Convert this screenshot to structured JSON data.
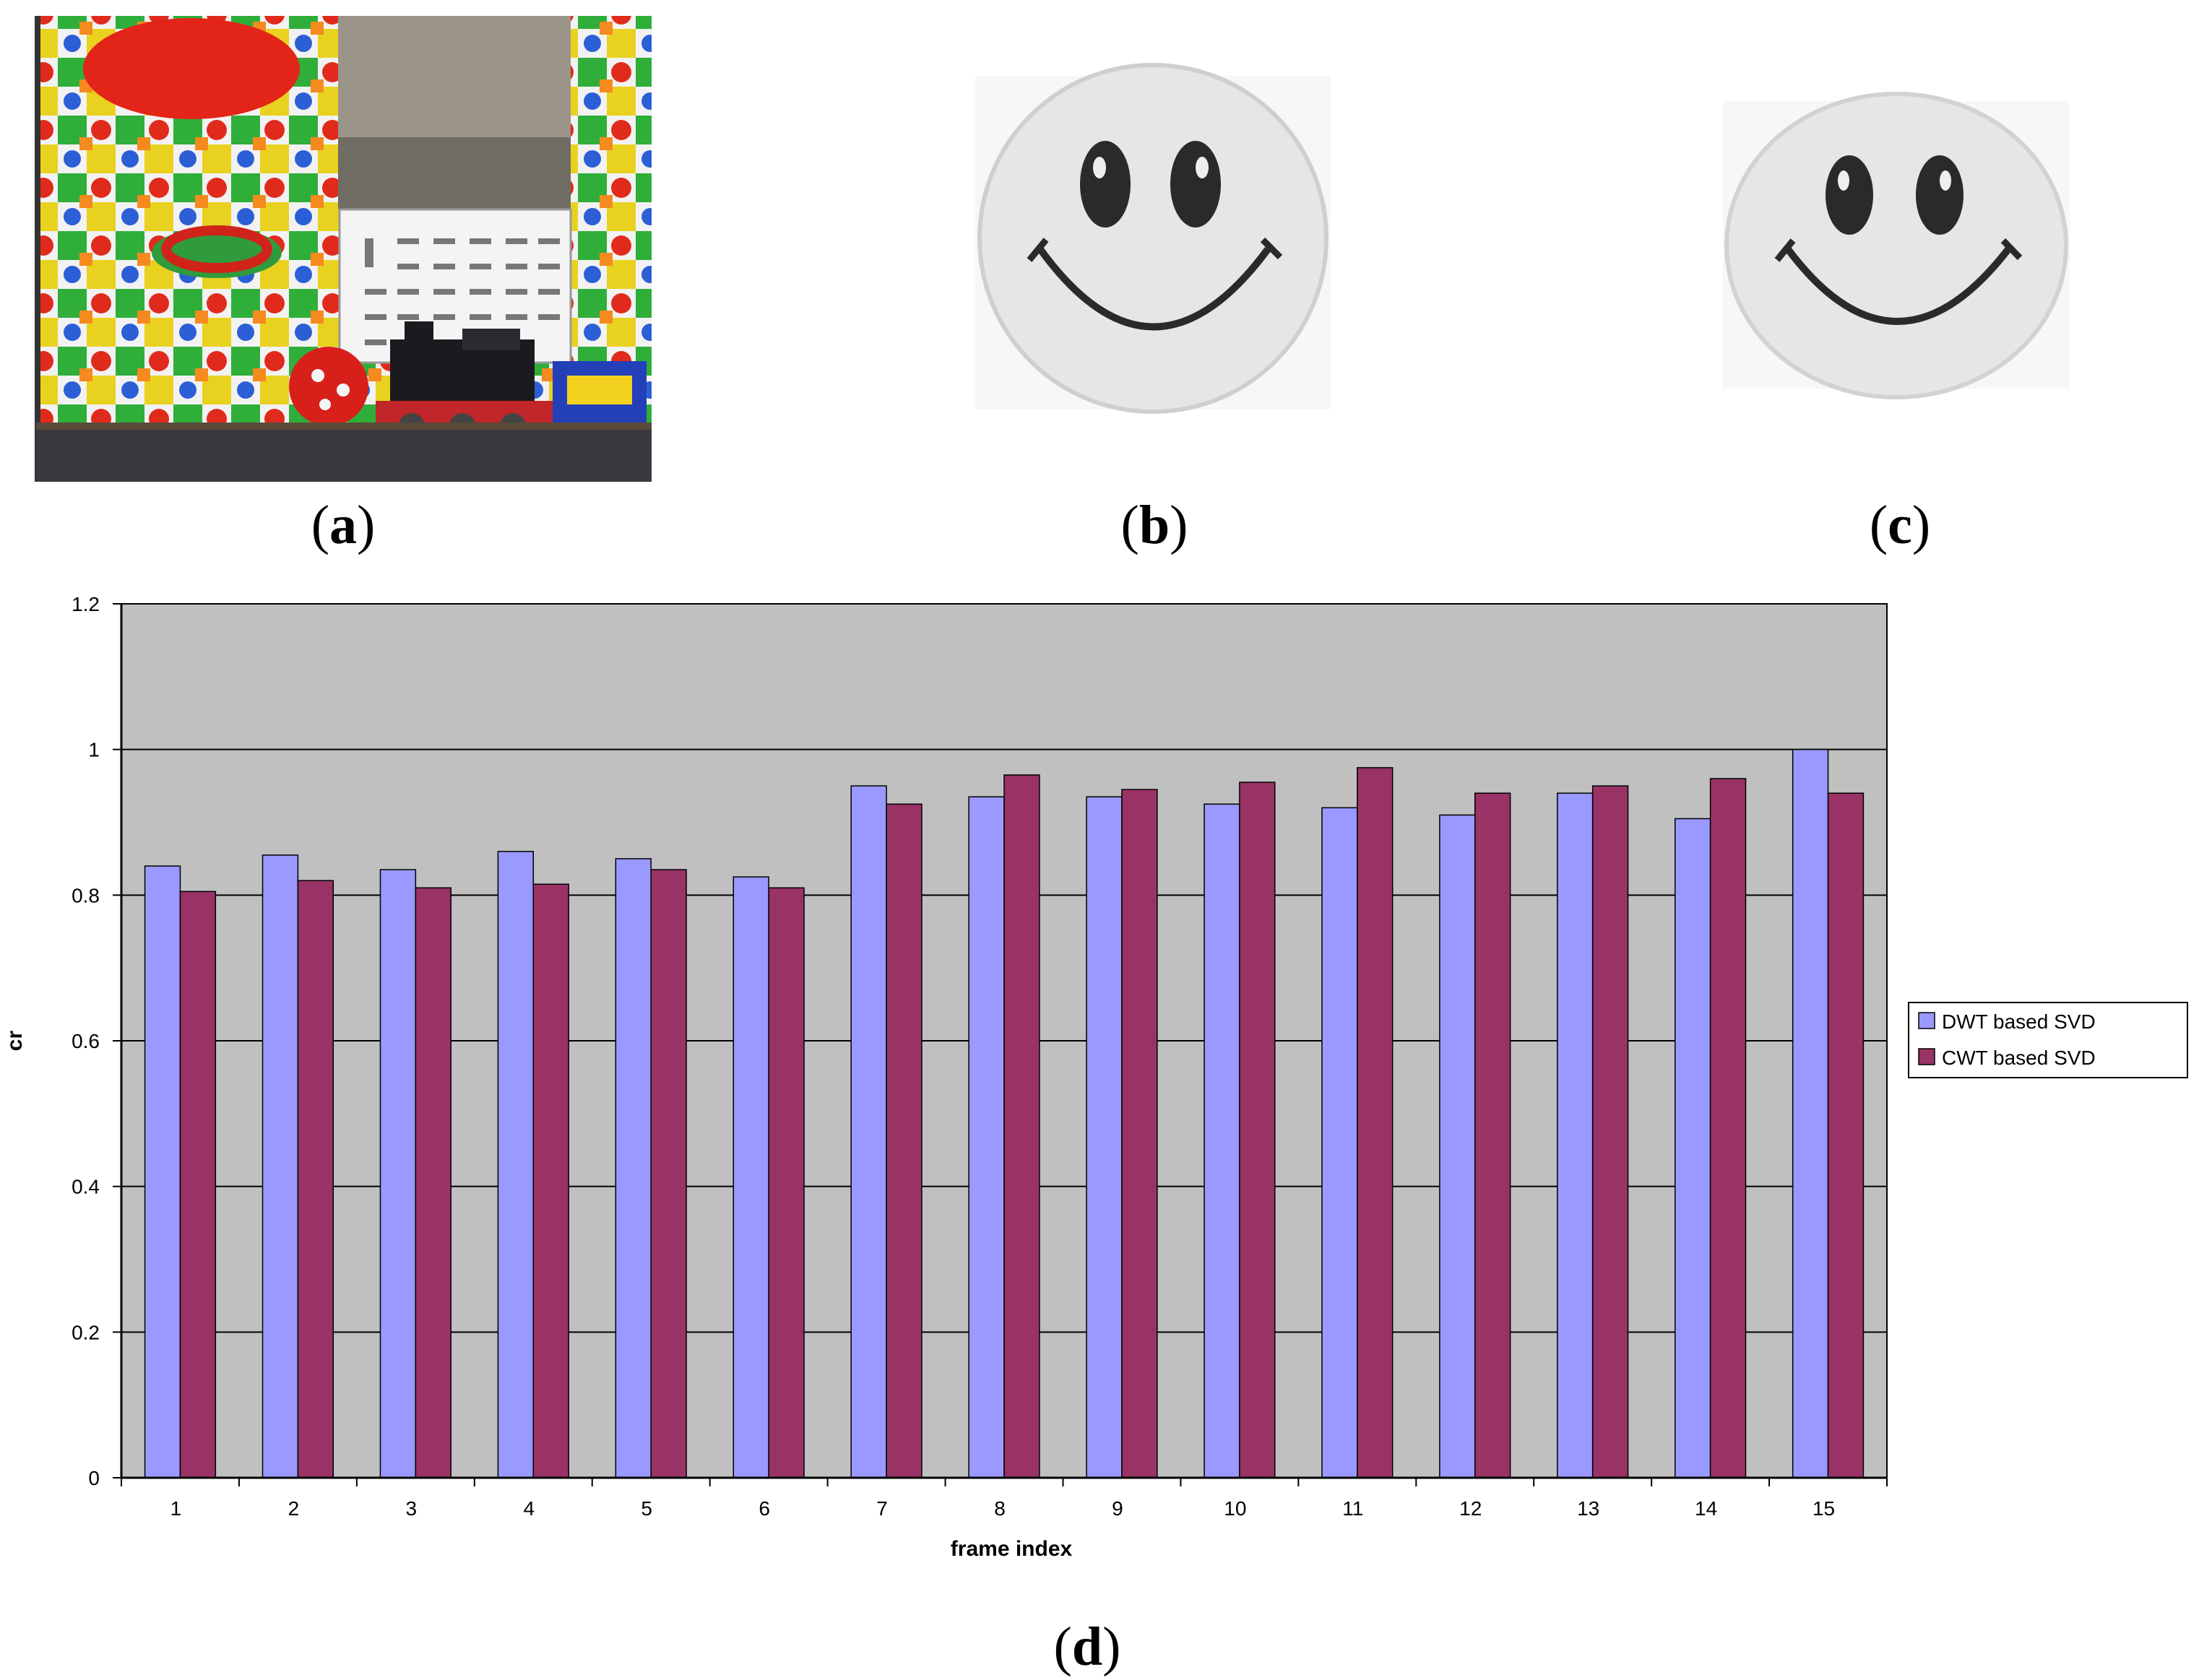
{
  "panels": {
    "a": {
      "label": "a",
      "image": "photo of colorful toy scene with calendar, ball and toy train"
    },
    "b": {
      "label": "b",
      "image": "smiley face watermark (extracted)"
    },
    "c": {
      "label": "c",
      "image": "smiley face watermark (original)"
    },
    "d": {
      "label": "d"
    }
  },
  "colors": {
    "plot_background": "#c0c0c0",
    "dwt": "#9999ff",
    "cwt": "#993366"
  },
  "chart_data": {
    "type": "bar",
    "title": "",
    "xlabel": "frame index",
    "ylabel": "cr",
    "ylim": [
      0,
      1.2
    ],
    "yticks": [
      "0",
      "0.2",
      "0.4",
      "0.6",
      "0.8",
      "1",
      "1.2"
    ],
    "categories": [
      "1",
      "2",
      "3",
      "4",
      "5",
      "6",
      "7",
      "8",
      "9",
      "10",
      "11",
      "12",
      "13",
      "14",
      "15"
    ],
    "grid": true,
    "legend_position": "right",
    "series": [
      {
        "name": "DWT based SVD",
        "color": "#9999ff",
        "values": [
          0.84,
          0.855,
          0.835,
          0.86,
          0.85,
          0.825,
          0.95,
          0.935,
          0.935,
          0.925,
          0.92,
          0.91,
          0.94,
          0.905,
          1.0
        ]
      },
      {
        "name": "CWT based SVD",
        "color": "#993366",
        "values": [
          0.805,
          0.82,
          0.81,
          0.815,
          0.835,
          0.81,
          0.925,
          0.965,
          0.945,
          0.955,
          0.975,
          0.94,
          0.95,
          0.96,
          0.94
        ]
      }
    ]
  }
}
